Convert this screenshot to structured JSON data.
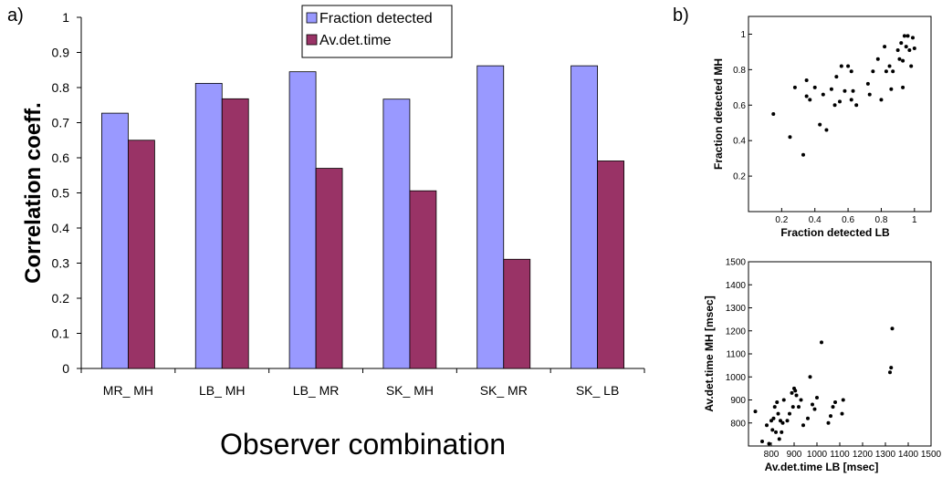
{
  "panel_labels": {
    "a": "a)",
    "b": "b)"
  },
  "chart_data": [
    {
      "type": "bar",
      "panel": "a)",
      "categories": [
        "MR_ MH",
        "LB_ MH",
        "LB_ MR",
        "SK_ MH",
        "SK_ MR",
        "SK_ LB"
      ],
      "series": [
        {
          "name": "Fraction detected",
          "color": "#9999ff",
          "values": [
            0.727,
            0.812,
            0.845,
            0.767,
            0.862,
            0.862
          ]
        },
        {
          "name": "Av.det.time",
          "color": "#993366",
          "values": [
            0.65,
            0.768,
            0.57,
            0.506,
            0.311,
            0.591
          ]
        }
      ],
      "xlabel": "Observer combination",
      "ylabel": "Correlation coeff.",
      "ylim": [
        0,
        1
      ],
      "yticks": [
        "0",
        "0.1",
        "0.2",
        "0.3",
        "0.4",
        "0.5",
        "0.6",
        "0.7",
        "0.8",
        "0.9",
        "1"
      ],
      "grid": false,
      "legend": "top-center"
    },
    {
      "type": "scatter",
      "panel": "b)",
      "xlabel": "Fraction detected LB",
      "ylabel": "Fraction detected MH",
      "xlim": [
        0,
        1.1
      ],
      "ylim": [
        0,
        1.1
      ],
      "xticks": [
        "0.2",
        "0.4",
        "0.6",
        "0.8",
        "1"
      ],
      "yticks": [
        "0.2",
        "0.4",
        "0.6",
        "0.8",
        "1"
      ],
      "x": [
        0.15,
        0.25,
        0.28,
        0.33,
        0.35,
        0.35,
        0.37,
        0.4,
        0.43,
        0.45,
        0.47,
        0.5,
        0.52,
        0.53,
        0.55,
        0.56,
        0.58,
        0.6,
        0.62,
        0.62,
        0.63,
        0.65,
        0.72,
        0.73,
        0.75,
        0.78,
        0.8,
        0.82,
        0.83,
        0.85,
        0.86,
        0.87,
        0.9,
        0.91,
        0.92,
        0.93,
        0.93,
        0.94,
        0.95,
        0.96,
        0.97,
        0.98,
        0.99,
        1.0
      ],
      "y": [
        0.55,
        0.42,
        0.7,
        0.32,
        0.65,
        0.74,
        0.63,
        0.7,
        0.49,
        0.66,
        0.46,
        0.69,
        0.6,
        0.76,
        0.62,
        0.82,
        0.68,
        0.82,
        0.63,
        0.79,
        0.68,
        0.6,
        0.72,
        0.66,
        0.79,
        0.86,
        0.63,
        0.93,
        0.79,
        0.82,
        0.69,
        0.79,
        0.91,
        0.86,
        0.95,
        0.7,
        0.85,
        0.99,
        0.93,
        0.99,
        0.91,
        0.82,
        0.98,
        0.92
      ]
    },
    {
      "type": "scatter",
      "panel": "b)",
      "xlabel": "Av.det.time LB [msec]",
      "ylabel": "Av.det.time MH [msec]",
      "xlim": [
        700,
        1500
      ],
      "ylim": [
        700,
        1500
      ],
      "xticks": [
        "800",
        "900",
        "1000",
        "1100",
        "1200",
        "1300",
        "1400",
        "1500"
      ],
      "yticks": [
        "800",
        "900",
        "1000",
        "1100",
        "1200",
        "1300",
        "1400",
        "1500"
      ],
      "x": [
        730,
        760,
        780,
        790,
        800,
        805,
        810,
        815,
        820,
        825,
        830,
        835,
        840,
        845,
        850,
        855,
        870,
        880,
        890,
        895,
        900,
        905,
        910,
        920,
        930,
        940,
        960,
        970,
        980,
        990,
        1000,
        1020,
        1050,
        1060,
        1070,
        1080,
        1110,
        1115,
        1320,
        1325,
        1330
      ],
      "y": [
        850,
        720,
        790,
        710,
        810,
        770,
        820,
        870,
        760,
        890,
        840,
        730,
        810,
        760,
        800,
        900,
        810,
        840,
        930,
        870,
        950,
        940,
        920,
        870,
        900,
        790,
        820,
        1000,
        880,
        860,
        910,
        1150,
        800,
        830,
        870,
        890,
        840,
        900,
        1020,
        1040,
        1210
      ]
    }
  ]
}
